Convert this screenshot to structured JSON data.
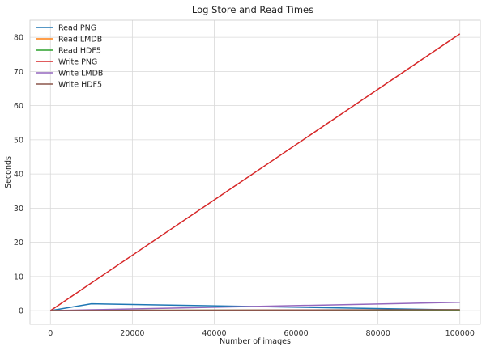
{
  "chart_data": {
    "type": "line",
    "title": "Log Store and Read Times",
    "xlabel": "Number of images",
    "ylabel": "Seconds",
    "xlim": [
      -5000,
      105000
    ],
    "ylim": [
      -4,
      85
    ],
    "xticks": [
      0,
      20000,
      40000,
      60000,
      80000,
      100000
    ],
    "xtick_labels": [
      "0",
      "20000",
      "40000",
      "60000",
      "80000",
      "100000"
    ],
    "yticks": [
      0,
      10,
      20,
      30,
      40,
      50,
      60,
      70,
      80
    ],
    "ytick_labels": [
      "0",
      "10",
      "20",
      "30",
      "40",
      "50",
      "60",
      "70",
      "80"
    ],
    "grid": true,
    "legend_position": "top-left",
    "x": [
      10,
      100,
      1000,
      10000,
      100000
    ],
    "series": [
      {
        "name": "Read PNG",
        "color": "#1f77b4",
        "values": [
          0.002,
          0.02,
          0.2,
          2,
          0.2
        ]
      },
      {
        "name": "Read LMDB",
        "color": "#ff7f0e",
        "values": [
          0.0001,
          0.001,
          0.01,
          0.1,
          0.15
        ]
      },
      {
        "name": "Read HDF5",
        "color": "#2ca02c",
        "values": [
          0.0001,
          0.001,
          0.01,
          0.1,
          0.1
        ]
      },
      {
        "name": "Write PNG",
        "color": "#d62728",
        "values": [
          0.008,
          0.08,
          0.8,
          8.1,
          81
        ]
      },
      {
        "name": "Write LMDB",
        "color": "#9467bd",
        "values": [
          0.0003,
          0.003,
          0.03,
          0.25,
          2.45
        ]
      },
      {
        "name": "Write HDF5",
        "color": "#8c564b",
        "values": [
          0.0001,
          0.001,
          0.01,
          0.06,
          0.3
        ]
      }
    ]
  }
}
